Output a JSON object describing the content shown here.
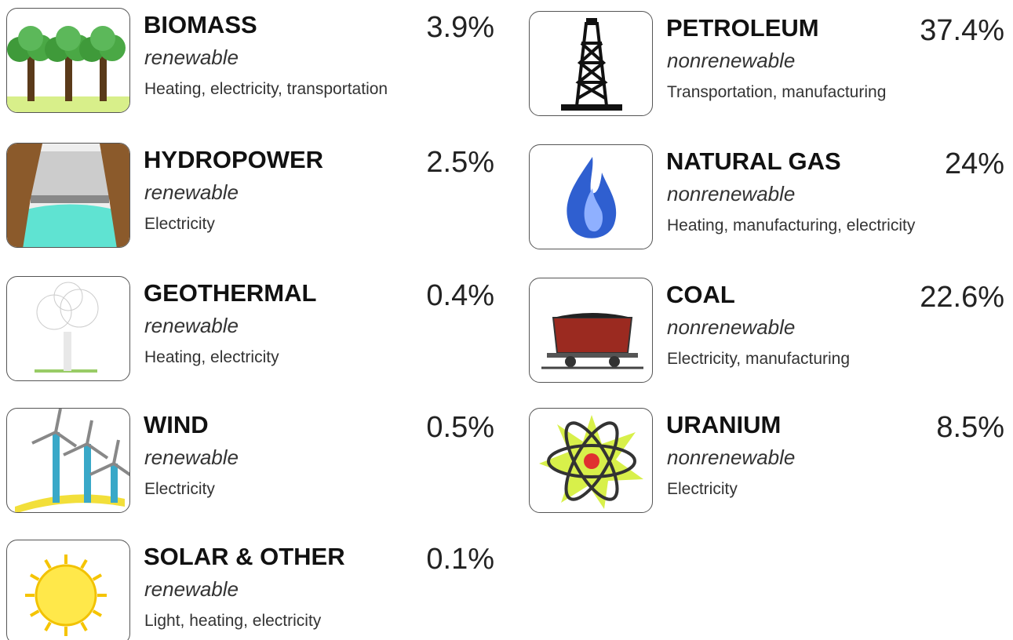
{
  "sources": [
    {
      "name": "BIOMASS",
      "kind": "renewable",
      "uses": "Heating, electricity, transportation",
      "share": "3.9%"
    },
    {
      "name": "HYDROPOWER",
      "kind": "renewable",
      "uses": "Electricity",
      "share": "2.5%"
    },
    {
      "name": "GEOTHERMAL",
      "kind": "renewable",
      "uses": "Heating, electricity",
      "share": "0.4%"
    },
    {
      "name": "WIND",
      "kind": "renewable",
      "uses": "Electricity",
      "share": "0.5%"
    },
    {
      "name": "SOLAR & OTHER",
      "kind": "renewable",
      "uses": "Light, heating, electricity",
      "share": "0.1%"
    },
    {
      "name": "PETROLEUM",
      "kind": "nonrenewable",
      "uses": "Transportation, manufacturing",
      "share": "37.4%"
    },
    {
      "name": "NATURAL GAS",
      "kind": "nonrenewable",
      "uses": "Heating, manufacturing, electricity",
      "share": "24%"
    },
    {
      "name": "COAL",
      "kind": "nonrenewable",
      "uses": "Electricity, manufacturing",
      "share": "22.6%"
    },
    {
      "name": "URANIUM",
      "kind": "nonrenewable",
      "uses": "Electricity",
      "share": "8.5%"
    }
  ]
}
